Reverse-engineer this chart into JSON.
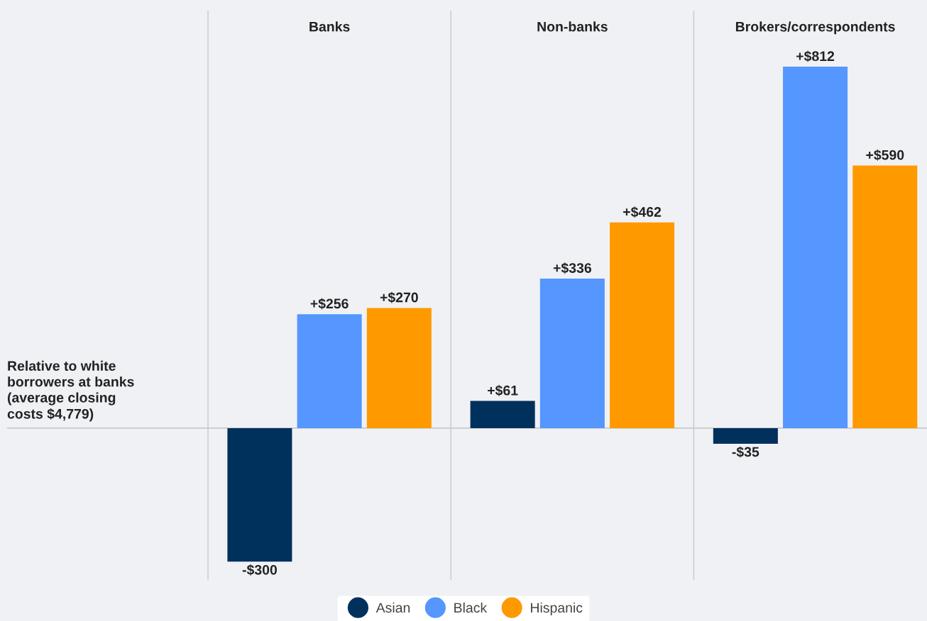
{
  "chart_data": {
    "type": "bar",
    "categories": [
      "Banks",
      "Non-banks",
      "Brokers/correspondents"
    ],
    "series": [
      {
        "name": "Asian",
        "color": "#00305c",
        "values": [
          -300,
          61,
          -35
        ],
        "value_labels": [
          "-$300",
          "+$61",
          "-$35"
        ]
      },
      {
        "name": "Black",
        "color": "#5596ff",
        "values": [
          256,
          336,
          812
        ],
        "value_labels": [
          "+$256",
          "+$336",
          "+$812"
        ]
      },
      {
        "name": "Hispanic",
        "color": "#ff9900",
        "values": [
          270,
          462,
          590
        ],
        "value_labels": [
          "+$270",
          "+$462",
          "+$590"
        ]
      }
    ],
    "ylim": [
      -341,
      938
    ],
    "ref_lines": [
      {
        "axis": "y",
        "value": 0,
        "label": "Relative to white\nborrowers at banks\n(average closing\ncosts $4,779)",
        "color": "#c8c8c8"
      }
    ],
    "legend": "bottom",
    "grid": false
  }
}
